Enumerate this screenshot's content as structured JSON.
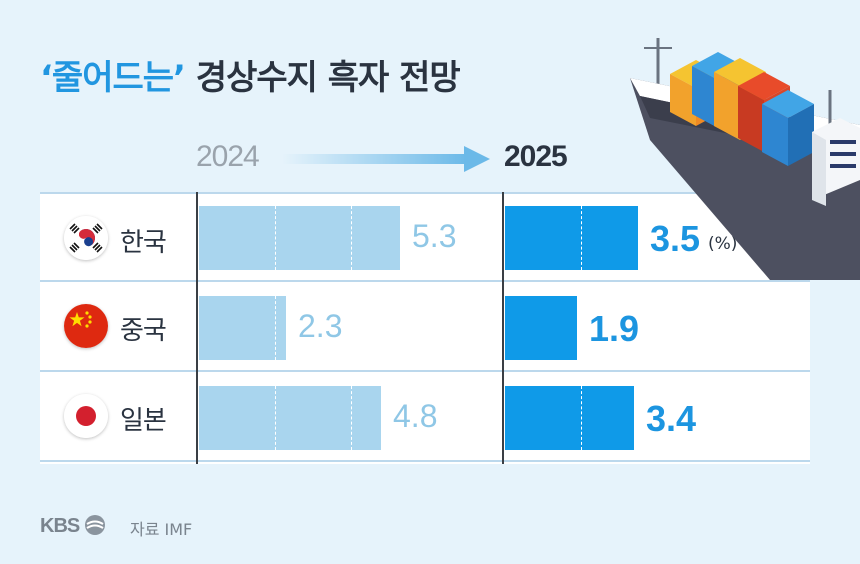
{
  "title": {
    "accent": "‘줄어드는’",
    "rest": "경상수지 흑자 전망"
  },
  "chart_data": {
    "type": "bar",
    "unit": "(%)",
    "categories": [
      "한국",
      "중국",
      "일본"
    ],
    "series": [
      {
        "name": "2024",
        "values": [
          5.3,
          2.3,
          4.8
        ]
      },
      {
        "name": "2025",
        "values": [
          3.5,
          1.9,
          3.4
        ]
      }
    ],
    "value_labels": {
      "2024": [
        "5.3",
        "2.3",
        "4.8"
      ],
      "2025": [
        "3.5",
        "1.9",
        "3.4"
      ]
    },
    "xlim": [
      0,
      7.5
    ]
  },
  "years": {
    "from": "2024",
    "to": "2025"
  },
  "flags": [
    "korea-flag-icon",
    "china-flag-icon",
    "japan-flag-icon"
  ],
  "colors": {
    "bar_2024": "#a9d5ee",
    "bar_2025": "#0f9ae8",
    "accent": "#2196e0"
  },
  "footer": {
    "logo": "KBS",
    "source": "자료 IMF"
  }
}
